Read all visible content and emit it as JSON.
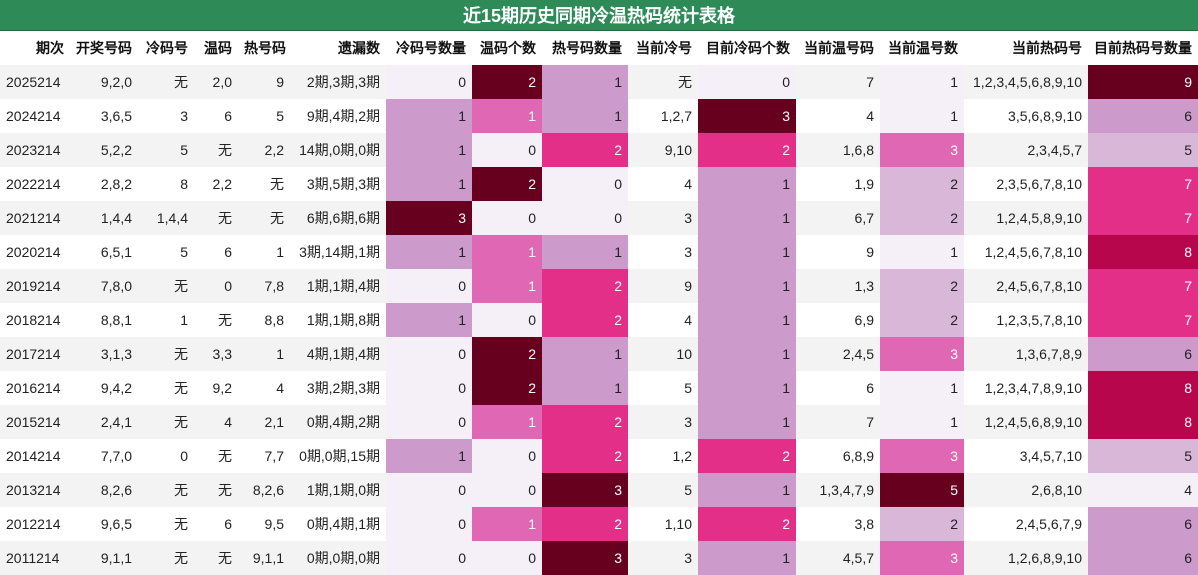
{
  "title": "近15期历史同期冷温热码统计表格",
  "headers": [
    "期次",
    "开奖号码",
    "冷码号",
    "温码",
    "热号码",
    "遗漏数",
    "冷码号数量",
    "温码个数",
    "热号码数量",
    "当前冷号",
    "目前冷码个数",
    "当前温号码",
    "当前温号数",
    "当前热码号",
    "目前热码号数量"
  ],
  "rows": [
    {
      "issue": "2025214",
      "draw": "9,2,0",
      "cold": "无",
      "warm": "2,0",
      "hot": "9",
      "miss": "2期,3期,3期",
      "cold_count": "0",
      "warm_count": "2",
      "hot_count": "1",
      "cur_cold": "无",
      "cur_cold_count": "0",
      "cur_warm": "7",
      "cur_warm_count": "1",
      "cur_hot": "1,2,3,4,5,6,8,9,10",
      "cur_hot_count": "9"
    },
    {
      "issue": "2024214",
      "draw": "3,6,5",
      "cold": "3",
      "warm": "6",
      "hot": "5",
      "miss": "9期,4期,2期",
      "cold_count": "1",
      "warm_count": "1",
      "hot_count": "1",
      "cur_cold": "1,2,7",
      "cur_cold_count": "3",
      "cur_warm": "4",
      "cur_warm_count": "1",
      "cur_hot": "3,5,6,8,9,10",
      "cur_hot_count": "6"
    },
    {
      "issue": "2023214",
      "draw": "5,2,2",
      "cold": "5",
      "warm": "无",
      "hot": "2,2",
      "miss": "14期,0期,0期",
      "cold_count": "1",
      "warm_count": "0",
      "hot_count": "2",
      "cur_cold": "9,10",
      "cur_cold_count": "2",
      "cur_warm": "1,6,8",
      "cur_warm_count": "3",
      "cur_hot": "2,3,4,5,7",
      "cur_hot_count": "5"
    },
    {
      "issue": "2022214",
      "draw": "2,8,2",
      "cold": "8",
      "warm": "2,2",
      "hot": "无",
      "miss": "3期,5期,3期",
      "cold_count": "1",
      "warm_count": "2",
      "hot_count": "0",
      "cur_cold": "4",
      "cur_cold_count": "1",
      "cur_warm": "1,9",
      "cur_warm_count": "2",
      "cur_hot": "2,3,5,6,7,8,10",
      "cur_hot_count": "7"
    },
    {
      "issue": "2021214",
      "draw": "1,4,4",
      "cold": "1,4,4",
      "warm": "无",
      "hot": "无",
      "miss": "6期,6期,6期",
      "cold_count": "3",
      "warm_count": "0",
      "hot_count": "0",
      "cur_cold": "3",
      "cur_cold_count": "1",
      "cur_warm": "6,7",
      "cur_warm_count": "2",
      "cur_hot": "1,2,4,5,8,9,10",
      "cur_hot_count": "7"
    },
    {
      "issue": "2020214",
      "draw": "6,5,1",
      "cold": "5",
      "warm": "6",
      "hot": "1",
      "miss": "3期,14期,1期",
      "cold_count": "1",
      "warm_count": "1",
      "hot_count": "1",
      "cur_cold": "3",
      "cur_cold_count": "1",
      "cur_warm": "9",
      "cur_warm_count": "1",
      "cur_hot": "1,2,4,5,6,7,8,10",
      "cur_hot_count": "8"
    },
    {
      "issue": "2019214",
      "draw": "7,8,0",
      "cold": "无",
      "warm": "0",
      "hot": "7,8",
      "miss": "1期,1期,4期",
      "cold_count": "0",
      "warm_count": "1",
      "hot_count": "2",
      "cur_cold": "9",
      "cur_cold_count": "1",
      "cur_warm": "1,3",
      "cur_warm_count": "2",
      "cur_hot": "2,4,5,6,7,8,10",
      "cur_hot_count": "7"
    },
    {
      "issue": "2018214",
      "draw": "8,8,1",
      "cold": "1",
      "warm": "无",
      "hot": "8,8",
      "miss": "1期,1期,8期",
      "cold_count": "1",
      "warm_count": "0",
      "hot_count": "2",
      "cur_cold": "4",
      "cur_cold_count": "1",
      "cur_warm": "6,9",
      "cur_warm_count": "2",
      "cur_hot": "1,2,3,5,7,8,10",
      "cur_hot_count": "7"
    },
    {
      "issue": "2017214",
      "draw": "3,1,3",
      "cold": "无",
      "warm": "3,3",
      "hot": "1",
      "miss": "4期,1期,4期",
      "cold_count": "0",
      "warm_count": "2",
      "hot_count": "1",
      "cur_cold": "10",
      "cur_cold_count": "1",
      "cur_warm": "2,4,5",
      "cur_warm_count": "3",
      "cur_hot": "1,3,6,7,8,9",
      "cur_hot_count": "6"
    },
    {
      "issue": "2016214",
      "draw": "9,4,2",
      "cold": "无",
      "warm": "9,2",
      "hot": "4",
      "miss": "3期,2期,3期",
      "cold_count": "0",
      "warm_count": "2",
      "hot_count": "1",
      "cur_cold": "5",
      "cur_cold_count": "1",
      "cur_warm": "6",
      "cur_warm_count": "1",
      "cur_hot": "1,2,3,4,7,8,9,10",
      "cur_hot_count": "8"
    },
    {
      "issue": "2015214",
      "draw": "2,4,1",
      "cold": "无",
      "warm": "4",
      "hot": "2,1",
      "miss": "0期,4期,2期",
      "cold_count": "0",
      "warm_count": "1",
      "hot_count": "2",
      "cur_cold": "3",
      "cur_cold_count": "1",
      "cur_warm": "7",
      "cur_warm_count": "1",
      "cur_hot": "1,2,4,5,6,8,9,10",
      "cur_hot_count": "8"
    },
    {
      "issue": "2014214",
      "draw": "7,7,0",
      "cold": "0",
      "warm": "无",
      "hot": "7,7",
      "miss": "0期,0期,15期",
      "cold_count": "1",
      "warm_count": "0",
      "hot_count": "2",
      "cur_cold": "1,2",
      "cur_cold_count": "2",
      "cur_warm": "6,8,9",
      "cur_warm_count": "3",
      "cur_hot": "3,4,5,7,10",
      "cur_hot_count": "5"
    },
    {
      "issue": "2013214",
      "draw": "8,2,6",
      "cold": "无",
      "warm": "无",
      "hot": "8,2,6",
      "miss": "1期,1期,0期",
      "cold_count": "0",
      "warm_count": "0",
      "hot_count": "3",
      "cur_cold": "5",
      "cur_cold_count": "1",
      "cur_warm": "1,3,4,7,9",
      "cur_warm_count": "5",
      "cur_hot": "2,6,8,10",
      "cur_hot_count": "4"
    },
    {
      "issue": "2012214",
      "draw": "9,6,5",
      "cold": "无",
      "warm": "6",
      "hot": "9,5",
      "miss": "0期,4期,1期",
      "cold_count": "0",
      "warm_count": "1",
      "hot_count": "2",
      "cur_cold": "1,10",
      "cur_cold_count": "2",
      "cur_warm": "3,8",
      "cur_warm_count": "2",
      "cur_hot": "2,4,5,6,7,9",
      "cur_hot_count": "6"
    },
    {
      "issue": "2011214",
      "draw": "9,1,1",
      "cold": "无",
      "warm": "无",
      "hot": "9,1,1",
      "miss": "0期,0期,0期",
      "cold_count": "0",
      "warm_count": "0",
      "hot_count": "3",
      "cur_cold": "3",
      "cur_cold_count": "1",
      "cur_warm": "4,5,7",
      "cur_warm_count": "3",
      "cur_hot": "1,2,6,8,9,10",
      "cur_hot_count": "6"
    }
  ],
  "colors": {
    "title_bg": "#2e8b57",
    "scale": [
      "#f5eff7",
      "#d8b7d9",
      "#cc9bcb",
      "#df67b3",
      "#e32f88",
      "#b8064c",
      "#67001f"
    ]
  }
}
